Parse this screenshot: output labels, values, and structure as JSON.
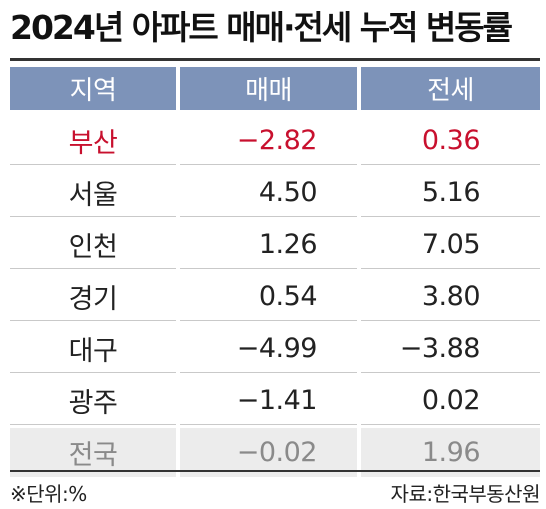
{
  "title": "2024년 아파트 매매·전세 누적 변동률",
  "colors": {
    "header_bg": "#7d93b9",
    "highlight": "#c8102e",
    "total_bg": "#ececec",
    "total_text": "#8a8a8a"
  },
  "table": {
    "headers": {
      "region": "지역",
      "sale": "매매",
      "jeonse": "전세"
    },
    "rows": [
      {
        "region": "부산",
        "sale": "−2.82",
        "jeonse": "0.36"
      },
      {
        "region": "서울",
        "sale": "4.50",
        "jeonse": "5.16"
      },
      {
        "region": "인천",
        "sale": "1.26",
        "jeonse": "7.05"
      },
      {
        "region": "경기",
        "sale": "0.54",
        "jeonse": "3.80"
      },
      {
        "region": "대구",
        "sale": "−4.99",
        "jeonse": "−3.88"
      },
      {
        "region": "광주",
        "sale": "−1.41",
        "jeonse": "0.02"
      },
      {
        "region": "전국",
        "sale": "−0.02",
        "jeonse": "1.96"
      }
    ]
  },
  "footer": {
    "unit": "※단위:%",
    "source": "자료:한국부동산원"
  }
}
